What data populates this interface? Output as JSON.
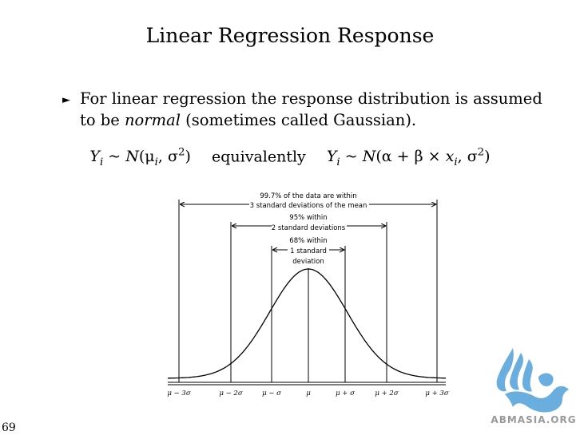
{
  "slide": {
    "title": "Linear Regression Response",
    "bullet_text_1": "For linear regression the response distribution is assumed to be ",
    "bullet_emphasis": "normal",
    "bullet_text_2": " (sometimes called Gaussian).",
    "formula_left": "Y_i ~ N(μ_i, σ^2)",
    "formula_connector": "equivalently",
    "formula_right": "Y_i ~ N(α + β × x_i, σ^2)",
    "page_number": "69"
  },
  "figure": {
    "annotations": [
      {
        "lines": [
          "99.7% of the data are within",
          "3 standard deviations of the mean"
        ]
      },
      {
        "lines": [
          "95% within",
          "2 standard deviations"
        ]
      },
      {
        "lines": [
          "68% within",
          "1 standard",
          "deviation"
        ]
      }
    ],
    "axis_labels": [
      "μ − 3σ",
      "μ − 2σ",
      "μ − σ",
      "μ",
      "μ + σ",
      "μ + 2σ",
      "μ + 3σ"
    ]
  },
  "logo": {
    "text": "ABMASIA.ORG",
    "color": "#6aaee0"
  }
}
